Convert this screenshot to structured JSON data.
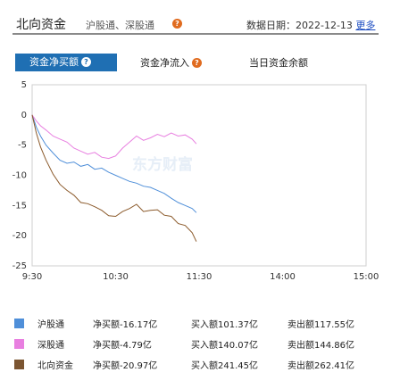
{
  "header": {
    "title": "北向资金",
    "subtitle": "沪股通、深股通",
    "date_label": "数据日期：2022-12-13",
    "more_link": "更多"
  },
  "tabs": [
    {
      "label": "资金净买额",
      "active": true
    },
    {
      "label": "资金净流入",
      "active": false
    },
    {
      "label": "当日资金余额",
      "active": false
    }
  ],
  "watermark": "东方财富",
  "chart_data": {
    "type": "line",
    "x_ticks": [
      "9:30",
      "10:30",
      "11:30",
      "14:00",
      "15:00"
    ],
    "y_ticks": [
      "5",
      "0",
      "-5",
      "-10",
      "-15",
      "-20",
      "-25"
    ],
    "ylim": [
      -25,
      5
    ],
    "series": [
      {
        "name": "沪股通",
        "color": "#4f8fd9",
        "x": [
          "9:30",
          "9:33",
          "9:36",
          "9:40",
          "9:45",
          "9:50",
          "9:55",
          "10:00",
          "10:05",
          "10:10",
          "10:15",
          "10:20",
          "10:25",
          "10:30",
          "10:35",
          "10:40",
          "10:45",
          "10:50",
          "10:55",
          "11:00",
          "11:05",
          "11:10",
          "11:15",
          "11:20",
          "11:25",
          "11:28"
        ],
        "values": [
          0.0,
          -2.0,
          -3.5,
          -5.0,
          -6.3,
          -7.5,
          -8.0,
          -7.8,
          -8.5,
          -8.2,
          -9.0,
          -8.8,
          -9.5,
          -10.0,
          -10.5,
          -11.0,
          -11.3,
          -11.8,
          -12.0,
          -12.5,
          -13.0,
          -13.8,
          -14.5,
          -15.0,
          -15.5,
          -16.17
        ]
      },
      {
        "name": "深股通",
        "color": "#e87fe0",
        "x": [
          "9:30",
          "9:33",
          "9:36",
          "9:40",
          "9:45",
          "9:50",
          "9:55",
          "10:00",
          "10:05",
          "10:10",
          "10:15",
          "10:20",
          "10:25",
          "10:30",
          "10:35",
          "10:40",
          "10:45",
          "10:50",
          "10:55",
          "11:00",
          "11:05",
          "11:10",
          "11:15",
          "11:20",
          "11:25",
          "11:28"
        ],
        "values": [
          0.0,
          -1.0,
          -1.8,
          -2.5,
          -3.5,
          -4.0,
          -4.5,
          -5.5,
          -6.0,
          -6.5,
          -6.2,
          -7.0,
          -7.2,
          -6.8,
          -5.5,
          -4.5,
          -3.5,
          -4.2,
          -3.8,
          -3.2,
          -3.6,
          -3.0,
          -3.5,
          -3.3,
          -4.0,
          -4.79
        ]
      },
      {
        "name": "北向资金",
        "color": "#8b5a2b",
        "x": [
          "9:30",
          "9:33",
          "9:36",
          "9:40",
          "9:45",
          "9:50",
          "9:55",
          "10:00",
          "10:05",
          "10:10",
          "10:15",
          "10:20",
          "10:25",
          "10:30",
          "10:35",
          "10:40",
          "10:45",
          "10:50",
          "10:55",
          "11:00",
          "11:05",
          "11:10",
          "11:15",
          "11:20",
          "11:25",
          "11:28"
        ],
        "values": [
          0.0,
          -3.0,
          -5.3,
          -7.5,
          -9.8,
          -11.5,
          -12.5,
          -13.3,
          -14.5,
          -14.7,
          -15.2,
          -15.8,
          -16.7,
          -16.8,
          -16.0,
          -15.5,
          -14.8,
          -16.0,
          -15.8,
          -15.7,
          -16.6,
          -16.8,
          -18.0,
          -18.3,
          -19.5,
          -20.97
        ]
      }
    ]
  },
  "legend": [
    {
      "swatch": "#4f8fd9",
      "name": "沪股通",
      "net": "净买额-16.17亿",
      "buy": "买入额101.37亿",
      "sell": "卖出额117.55亿"
    },
    {
      "swatch": "#e87fe0",
      "name": "深股通",
      "net": "净买额-4.79亿",
      "buy": "买入额140.07亿",
      "sell": "卖出额144.86亿"
    },
    {
      "swatch": "#7b5531",
      "name": "北向资金",
      "net": "净买额-20.97亿",
      "buy": "买入额241.45亿",
      "sell": "卖出额262.41亿"
    }
  ]
}
